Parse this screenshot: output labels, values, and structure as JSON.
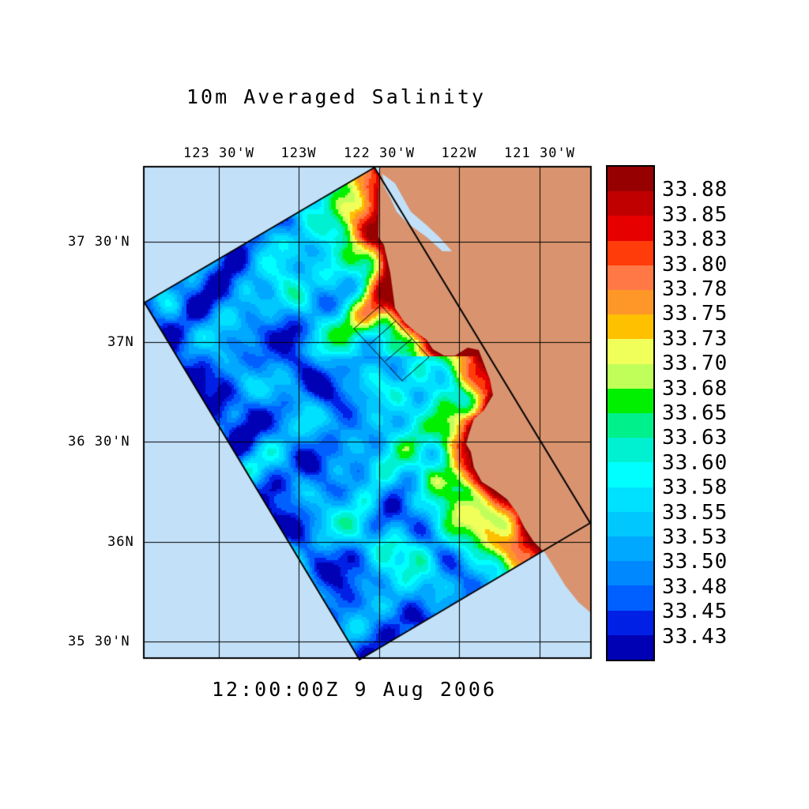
{
  "title": "10m Averaged Salinity",
  "timestamp": "12:00:00Z    9 Aug 2006",
  "lon_labels": [
    "123 30'W",
    "123W",
    "122 30'W",
    "122W",
    "121 30'W"
  ],
  "lat_labels": [
    "37 30'N",
    "37N",
    "36 30'N",
    "36N",
    "35 30'N"
  ],
  "colorbar": {
    "labels": [
      "33.88",
      "33.85",
      "33.83",
      "33.80",
      "33.78",
      "33.75",
      "33.73",
      "33.70",
      "33.68",
      "33.65",
      "33.63",
      "33.60",
      "33.58",
      "33.55",
      "33.53",
      "33.50",
      "33.48",
      "33.45",
      "33.43"
    ],
    "colors": [
      "#960000",
      "#c00000",
      "#e60000",
      "#ff3c0a",
      "#ff7846",
      "#ff9628",
      "#ffc000",
      "#f0ff5a",
      "#c0ff5a",
      "#00f000",
      "#00f08c",
      "#00f0d2",
      "#00ffff",
      "#00e0ff",
      "#00c8ff",
      "#00a8ff",
      "#0088ff",
      "#0060ff",
      "#0020e6",
      "#0000b4"
    ]
  },
  "colors": {
    "land": "#d9946f",
    "ocean": "#c2e0f8"
  }
}
